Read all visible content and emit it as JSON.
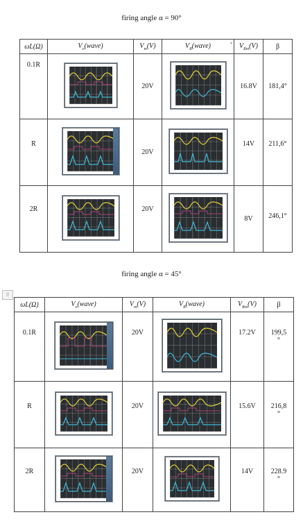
{
  "section1": {
    "title": "firing angle α = 90°",
    "headers": {
      "col1": "ωL(Ω)",
      "col2_main": "V",
      "col2_sub": "o",
      "col2_tail": "(wave)",
      "col3_main": "V",
      "col3_sub": "m",
      "col3_tail": "(V)",
      "col4_main": "V",
      "col4_sub": "R",
      "col4_tail": "(wave)",
      "col5_main": "V",
      "col5_sub": "Rm",
      "col5_tail": "(V)",
      "col6": "β"
    },
    "rows": [
      {
        "wl": "0.1R",
        "vm": "20V",
        "vrm": "16.8V",
        "beta": "181,4°"
      },
      {
        "wl": "R",
        "vm": "20V",
        "vrm": "14V",
        "beta": "211,6°"
      },
      {
        "wl": "2R",
        "vm": "20V",
        "vrm": "8V",
        "beta": "246,1°"
      }
    ]
  },
  "section2": {
    "title": "firing angle α = 45°",
    "headers": {
      "col1": "ωL(Ω)",
      "col2_main": "V",
      "col2_sub": "o",
      "col2_tail": "(wave)",
      "col3_main": "V",
      "col3_sub": "m",
      "col3_tail": "(V)",
      "col4_main": "V",
      "col4_sub": "R",
      "col4_tail": "(wave)",
      "col5_main": "V",
      "col5_sub": "Rm",
      "col5_tail": "(V)",
      "col6": "β"
    },
    "rows": [
      {
        "wl": "0.1R",
        "vm": "20V",
        "vrm": "17.2V",
        "beta1": "199,5",
        "beta2": "°"
      },
      {
        "wl": "R",
        "vm": "20V",
        "vrm": "15.6V",
        "beta1": "216,8",
        "beta2": "°"
      },
      {
        "wl": "2R",
        "vm": "20V",
        "vrm": "14V",
        "beta1": "228.9",
        "beta2": "°"
      }
    ]
  },
  "colors": {
    "trace_yellow": "#e8d23a",
    "trace_cyan": "#3fb8d8",
    "trace_magenta": "#d0458c",
    "scope_screen": "#2a2e31"
  },
  "icons": {
    "table_handle": "move-handle-icon",
    "dropdown": "dropdown-arrow-icon"
  }
}
